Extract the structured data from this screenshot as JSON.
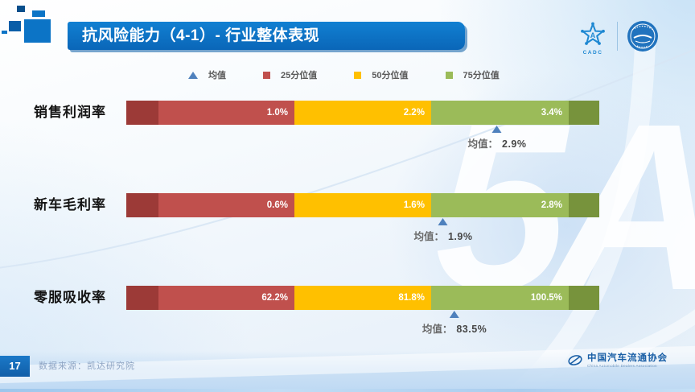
{
  "slide": {
    "title": "抗风险能力（4-1）- 行业整体表现",
    "page_number": "17",
    "source": "数据来源：凯达研究院",
    "watermark": "5A"
  },
  "logos": {
    "cadc_caption": "CADC",
    "assoc_name": "中国汽车流通协会",
    "assoc_name_en": "China Automobile Dealers Association"
  },
  "legend": {
    "items": [
      {
        "label": "均值",
        "shape": "triangle",
        "color": "#4F81BD"
      },
      {
        "label": "25分位值",
        "shape": "square",
        "color": "#C0504D"
      },
      {
        "label": "50分位值",
        "shape": "square",
        "color": "#FFC000"
      },
      {
        "label": "75分位值",
        "shape": "square",
        "color": "#9BBB59"
      }
    ]
  },
  "palette": {
    "accent_blue": "#4F81BD",
    "p25_red": "#C0504D",
    "p25_red_dark": "#9C3A37",
    "p50_yellow": "#FFC000",
    "p75_green": "#9BBB59",
    "p75_green_dark": "#77933C",
    "banner_blue": "#0B6FC2",
    "footer_badge_blue": "#1366B4"
  },
  "chart_data": {
    "type": "bar",
    "orientation": "horizontal-stacked-quartiles",
    "categories": [
      "销售利润率",
      "新车毛利率",
      "零服吸收率"
    ],
    "series": [
      {
        "name": "25分位值",
        "values": [
          1.0,
          0.6,
          62.2
        ],
        "unit": "%"
      },
      {
        "name": "50分位值",
        "values": [
          2.2,
          1.6,
          81.8
        ],
        "unit": "%"
      },
      {
        "name": "75分位值",
        "values": [
          3.4,
          2.8,
          100.5
        ],
        "unit": "%"
      },
      {
        "name": "均值",
        "values": [
          2.9,
          1.9,
          83.5
        ],
        "unit": "%"
      }
    ],
    "legend_position": "top",
    "grid": false,
    "rows": [
      {
        "label": "销售利润率",
        "p25": "1.0%",
        "p50": "2.2%",
        "p75": "3.4%",
        "mean_prefix": "均值：",
        "mean": "2.9%",
        "mean_pos_pct": 78.4
      },
      {
        "label": "新车毛利率",
        "p25": "0.6%",
        "p50": "1.6%",
        "p75": "2.8%",
        "mean_prefix": "均值：",
        "mean": "1.9%",
        "mean_pos_pct": 67.0
      },
      {
        "label": "零服吸收率",
        "p25": "62.2%",
        "p50": "81.8%",
        "p75": "100.5%",
        "mean_prefix": "均值：",
        "mean": "83.5%",
        "mean_pos_pct": 69.4
      }
    ]
  }
}
